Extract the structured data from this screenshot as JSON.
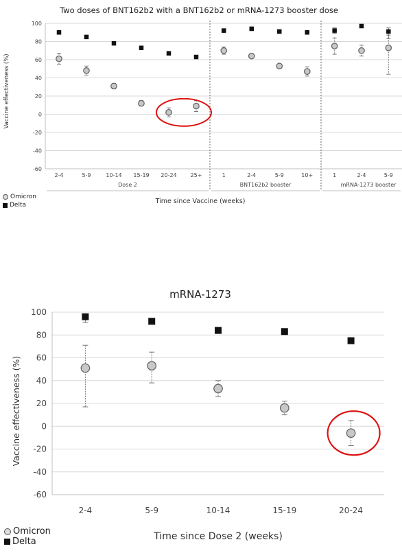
{
  "chart_data": [
    {
      "type": "scatter",
      "title": "Two doses of BNT162b2 with a BNT162b2 or mRNA-1273 booster dose",
      "xlabel": "Time since Vaccine (weeks)",
      "ylabel": "Vaccine effectiveness (%)",
      "ylim": [
        -60,
        100
      ],
      "yticks": [
        -60,
        -40,
        -20,
        0,
        20,
        40,
        60,
        80,
        100
      ],
      "groups": [
        {
          "label": "Dose 2",
          "categories": [
            "2-4",
            "5-9",
            "10-14",
            "15-19",
            "20-24",
            "25+"
          ]
        },
        {
          "label": "BNT162b2 booster",
          "categories": [
            "1",
            "2-4",
            "5-9",
            "10+"
          ]
        },
        {
          "label": "mRNA-1273 booster",
          "categories": [
            "1",
            "2-4",
            "5-9"
          ]
        }
      ],
      "series": [
        {
          "name": "Omicron",
          "marker": "circle",
          "color": "#c8c8c8",
          "values": [
            61,
            48,
            31,
            12,
            2,
            9,
            70,
            64,
            53,
            47,
            75,
            70,
            73
          ],
          "lower": [
            55,
            43,
            28,
            9,
            -3,
            3,
            66,
            62,
            51,
            42,
            66,
            64,
            44
          ],
          "upper": [
            67,
            53,
            34,
            15,
            7,
            15,
            74,
            66,
            55,
            52,
            84,
            76,
            87
          ]
        },
        {
          "name": "Delta",
          "marker": "square",
          "color": "#111111",
          "values": [
            90,
            85,
            78,
            73,
            67,
            63,
            92,
            94,
            91,
            90,
            92,
            97,
            91
          ],
          "lower": [
            88,
            84,
            77,
            72,
            66,
            62,
            90,
            92,
            89,
            88,
            89,
            96,
            83
          ],
          "upper": [
            92,
            86,
            79,
            74,
            68,
            64,
            94,
            96,
            93,
            92,
            95,
            98,
            95
          ]
        }
      ],
      "highlight_index": 4,
      "grid": true,
      "legend_position": "bottom-left"
    },
    {
      "type": "scatter",
      "title": "mRNA-1273",
      "xlabel": "Time since Dose 2 (weeks)",
      "ylabel": "Vaccine effectiveness (%)",
      "ylim": [
        -60,
        100
      ],
      "yticks": [
        -60,
        -40,
        -20,
        0,
        20,
        40,
        60,
        80,
        100
      ],
      "categories": [
        "2-4",
        "5-9",
        "10-14",
        "15-19",
        "20-24"
      ],
      "series": [
        {
          "name": "Omicron",
          "marker": "circle",
          "color": "#c8c8c8",
          "values": [
            51,
            53,
            33,
            16,
            -6
          ],
          "lower": [
            17,
            38,
            26,
            10,
            -17
          ],
          "upper": [
            71,
            65,
            40,
            22,
            5
          ]
        },
        {
          "name": "Delta",
          "marker": "square",
          "color": "#111111",
          "values": [
            96,
            92,
            84,
            83,
            75
          ],
          "lower": [
            91,
            90,
            83,
            82,
            74
          ],
          "upper": [
            97,
            94,
            85,
            84,
            76
          ]
        }
      ],
      "highlight_index": 4,
      "grid": true,
      "legend_position": "bottom-left"
    }
  ]
}
